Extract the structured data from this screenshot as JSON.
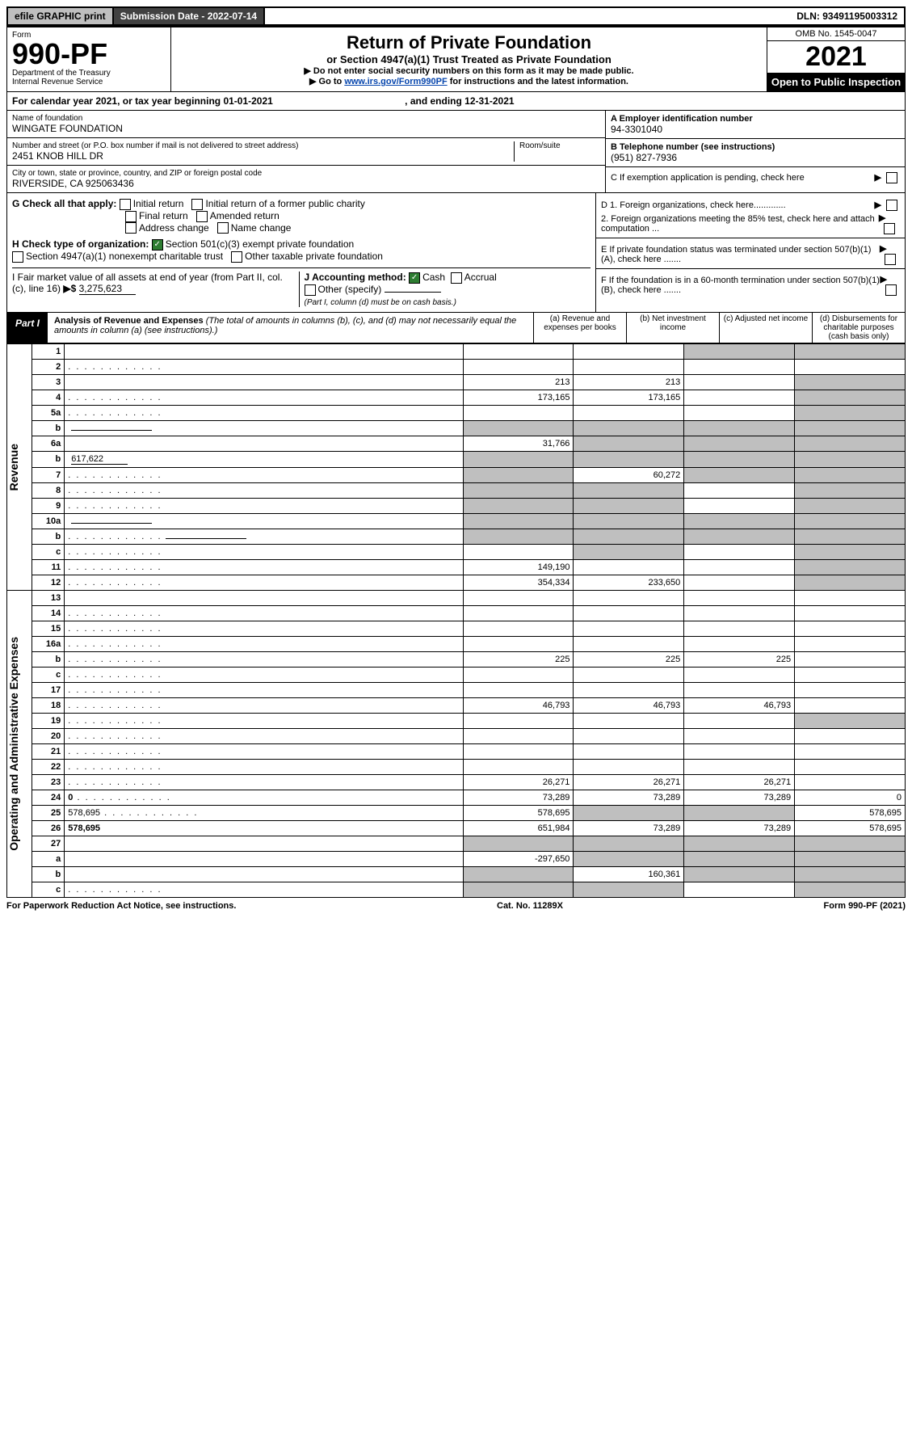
{
  "topbar": {
    "efile": "efile GRAPHIC print",
    "sub_label": "Submission Date - 2022-07-14",
    "dln": "DLN: 93491195003312"
  },
  "header": {
    "form_word": "Form",
    "form_num": "990-PF",
    "dept1": "Department of the Treasury",
    "dept2": "Internal Revenue Service",
    "title": "Return of Private Foundation",
    "subtitle": "or Section 4947(a)(1) Trust Treated as Private Foundation",
    "instr1": "▶ Do not enter social security numbers on this form as it may be made public.",
    "instr2_pre": "▶ Go to ",
    "instr2_link": "www.irs.gov/Form990PF",
    "instr2_post": " for instructions and the latest information.",
    "omb": "OMB No. 1545-0047",
    "year": "2021",
    "open": "Open to Public Inspection"
  },
  "cal": {
    "line": "For calendar year 2021, or tax year beginning 01-01-2021",
    "mid": ", and ending 12-31-2021"
  },
  "id": {
    "name_lbl": "Name of foundation",
    "name": "WINGATE FOUNDATION",
    "addr_lbl": "Number and street (or P.O. box number if mail is not delivered to street address)",
    "room_lbl": "Room/suite",
    "addr": "2451 KNOB HILL DR",
    "city_lbl": "City or town, state or province, country, and ZIP or foreign postal code",
    "city": "RIVERSIDE, CA  925063436",
    "ein_lbl": "A Employer identification number",
    "ein": "94-3301040",
    "tel_lbl": "B Telephone number (see instructions)",
    "tel": "(951) 827-7936",
    "c_lbl": "C If exemption application is pending, check here"
  },
  "g": {
    "lbl": "G Check all that apply:",
    "o1": "Initial return",
    "o2": "Initial return of a former public charity",
    "o3": "Final return",
    "o4": "Amended return",
    "o5": "Address change",
    "o6": "Name change"
  },
  "h": {
    "lbl": "H Check type of organization:",
    "o1": "Section 501(c)(3) exempt private foundation",
    "o2": "Section 4947(a)(1) nonexempt charitable trust",
    "o3": "Other taxable private foundation"
  },
  "i": {
    "lbl": "I Fair market value of all assets at end of year (from Part II, col. (c), line 16)",
    "arrow": "▶$",
    "val": "3,275,623"
  },
  "j": {
    "lbl": "J Accounting method:",
    "cash": "Cash",
    "accrual": "Accrual",
    "other": "Other (specify)",
    "note": "(Part I, column (d) must be on cash basis.)"
  },
  "right": {
    "d1": "D 1. Foreign organizations, check here.............",
    "d2": "2. Foreign organizations meeting the 85% test, check here and attach computation ...",
    "e": "E  If private foundation status was terminated under section 507(b)(1)(A), check here .......",
    "f": "F  If the foundation is in a 60-month termination under section 507(b)(1)(B), check here ......."
  },
  "part1": {
    "tag": "Part I",
    "title_bold": "Analysis of Revenue and Expenses",
    "title_rest": " (The total of amounts in columns (b), (c), and (d) may not necessarily equal the amounts in column (a) (see instructions).)",
    "cols": {
      "a": "(a) Revenue and expenses per books",
      "b": "(b) Net investment income",
      "c": "(c) Adjusted net income",
      "d": "(d) Disbursements for charitable purposes (cash basis only)"
    }
  },
  "side": {
    "rev": "Revenue",
    "exp": "Operating and Administrative Expenses"
  },
  "rows": [
    {
      "n": "1",
      "d": "",
      "a": "",
      "b": "",
      "c": "",
      "shade_cd": true
    },
    {
      "n": "2",
      "d": "",
      "dots": true,
      "a": "",
      "b": "",
      "c": "",
      "shade_all": true,
      "bold_not": true
    },
    {
      "n": "3",
      "d": "",
      "a": "213",
      "b": "213",
      "c": "",
      "shade_d": true
    },
    {
      "n": "4",
      "d": "",
      "dots": true,
      "a": "173,165",
      "b": "173,165",
      "c": "",
      "shade_d": true
    },
    {
      "n": "5a",
      "d": "",
      "dots": true,
      "a": "",
      "b": "",
      "c": "",
      "shade_d": true
    },
    {
      "n": "b",
      "d": "",
      "inline": true,
      "a": "",
      "b": "",
      "c": "",
      "shade_abcd": true
    },
    {
      "n": "6a",
      "d": "",
      "a": "31,766",
      "b": "",
      "c": "",
      "shade_bcd": true
    },
    {
      "n": "b",
      "d": "",
      "inline_val": "617,622",
      "a": "",
      "b": "",
      "c": "",
      "shade_abcd": true
    },
    {
      "n": "7",
      "d": "",
      "dots": true,
      "a": "",
      "b": "60,272",
      "c": "",
      "shade_a": true,
      "shade_cd": true
    },
    {
      "n": "8",
      "d": "",
      "dots": true,
      "a": "",
      "b": "",
      "c": "",
      "shade_ab": true,
      "shade_d": true
    },
    {
      "n": "9",
      "d": "",
      "dots": true,
      "a": "",
      "b": "",
      "c": "",
      "shade_ab": true,
      "shade_d": true
    },
    {
      "n": "10a",
      "d": "",
      "inline": true,
      "a": "",
      "b": "",
      "c": "",
      "shade_abcd": true
    },
    {
      "n": "b",
      "d": "",
      "dots": true,
      "inline": true,
      "a": "",
      "b": "",
      "c": "",
      "shade_abcd": true
    },
    {
      "n": "c",
      "d": "",
      "dots": true,
      "a": "",
      "b": "",
      "c": "",
      "shade_b": true,
      "shade_d": true
    },
    {
      "n": "11",
      "d": "",
      "dots": true,
      "a": "149,190",
      "b": "",
      "c": "",
      "shade_d": true
    },
    {
      "n": "12",
      "d": "",
      "dots": true,
      "bold": true,
      "a": "354,334",
      "b": "233,650",
      "c": "",
      "shade_d": true
    },
    {
      "n": "13",
      "d": "",
      "a": "",
      "b": "",
      "c": ""
    },
    {
      "n": "14",
      "d": "",
      "dots": true,
      "a": "",
      "b": "",
      "c": ""
    },
    {
      "n": "15",
      "d": "",
      "dots": true,
      "a": "",
      "b": "",
      "c": ""
    },
    {
      "n": "16a",
      "d": "",
      "dots": true,
      "a": "",
      "b": "",
      "c": ""
    },
    {
      "n": "b",
      "d": "",
      "dots": true,
      "a": "225",
      "b": "225",
      "c": "225"
    },
    {
      "n": "c",
      "d": "",
      "dots": true,
      "a": "",
      "b": "",
      "c": ""
    },
    {
      "n": "17",
      "d": "",
      "dots": true,
      "a": "",
      "b": "",
      "c": ""
    },
    {
      "n": "18",
      "d": "",
      "dots": true,
      "a": "46,793",
      "b": "46,793",
      "c": "46,793"
    },
    {
      "n": "19",
      "d": "",
      "dots": true,
      "a": "",
      "b": "",
      "c": "",
      "shade_d": true
    },
    {
      "n": "20",
      "d": "",
      "dots": true,
      "a": "",
      "b": "",
      "c": ""
    },
    {
      "n": "21",
      "d": "",
      "dots": true,
      "a": "",
      "b": "",
      "c": ""
    },
    {
      "n": "22",
      "d": "",
      "dots": true,
      "a": "",
      "b": "",
      "c": ""
    },
    {
      "n": "23",
      "d": "",
      "dots": true,
      "a": "26,271",
      "b": "26,271",
      "c": "26,271"
    },
    {
      "n": "24",
      "d": "0",
      "dots": true,
      "bold": true,
      "a": "73,289",
      "b": "73,289",
      "c": "73,289"
    },
    {
      "n": "25",
      "d": "578,695",
      "dots": true,
      "a": "578,695",
      "b": "",
      "c": "",
      "shade_bc": true
    },
    {
      "n": "26",
      "d": "578,695",
      "bold": true,
      "a": "651,984",
      "b": "73,289",
      "c": "73,289"
    },
    {
      "n": "27",
      "d": "",
      "a": "",
      "b": "",
      "c": "",
      "shade_abcd": true
    },
    {
      "n": "a",
      "d": "",
      "bold": true,
      "a": "-297,650",
      "b": "",
      "c": "",
      "shade_bcd": true
    },
    {
      "n": "b",
      "d": "",
      "bold": true,
      "a": "",
      "b": "160,361",
      "c": "",
      "shade_a": true,
      "shade_cd": true
    },
    {
      "n": "c",
      "d": "",
      "dots": true,
      "bold": true,
      "a": "",
      "b": "",
      "c": "",
      "shade_ab": true,
      "shade_d": true
    }
  ],
  "footer": {
    "left": "For Paperwork Reduction Act Notice, see instructions.",
    "mid": "Cat. No. 11289X",
    "right": "Form 990-PF (2021)"
  }
}
